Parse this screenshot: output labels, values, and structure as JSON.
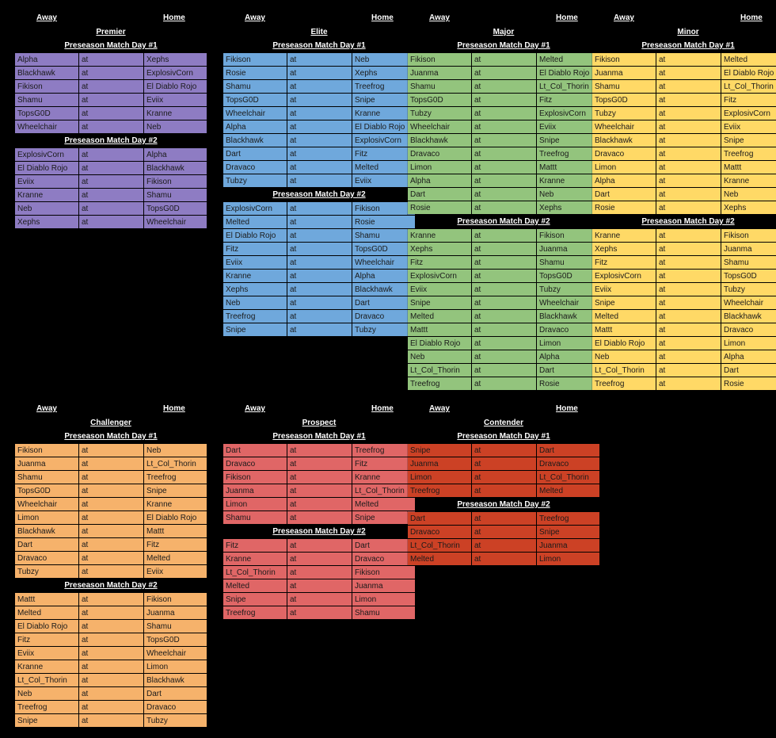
{
  "labels": {
    "away": "Away",
    "home": "Home",
    "day1": "Preseason Match Day #1",
    "day2": "Preseason Match Day #2",
    "at": "at"
  },
  "divisions": [
    {
      "key": "premier",
      "title": "Premier",
      "color": "#8e7cc3",
      "day1": [
        [
          "Alpha",
          "Xephs"
        ],
        [
          "Blackhawk",
          "ExplosivCorn"
        ],
        [
          "Fikison",
          "El Diablo Rojo"
        ],
        [
          "Shamu",
          "Eviix"
        ],
        [
          "TopsG0D",
          "Kranne"
        ],
        [
          "Wheelchair",
          "Neb"
        ]
      ],
      "day2": [
        [
          "ExplosivCorn",
          "Alpha"
        ],
        [
          "El Diablo Rojo",
          "Blackhawk"
        ],
        [
          "Eviix",
          "Fikison"
        ],
        [
          "Kranne",
          "Shamu"
        ],
        [
          "Neb",
          "TopsG0D"
        ],
        [
          "Xephs",
          "Wheelchair"
        ]
      ]
    },
    {
      "key": "elite",
      "title": "Elite",
      "color": "#6fa8dc",
      "day1": [
        [
          "Fikison",
          "Neb"
        ],
        [
          "Rosie",
          "Xephs"
        ],
        [
          "Shamu",
          "Treefrog"
        ],
        [
          "TopsG0D",
          "Snipe"
        ],
        [
          "Wheelchair",
          "Kranne"
        ],
        [
          "Alpha",
          "El Diablo Rojo"
        ],
        [
          "Blackhawk",
          "ExplosivCorn"
        ],
        [
          "Dart",
          "Fitz"
        ],
        [
          "Dravaco",
          "Melted"
        ],
        [
          "Tubzy",
          "Eviix"
        ]
      ],
      "day2": [
        [
          "ExplosivCorn",
          "Fikison"
        ],
        [
          "Melted",
          "Rosie"
        ],
        [
          "El Diablo Rojo",
          "Shamu"
        ],
        [
          "Fitz",
          "TopsG0D"
        ],
        [
          "Eviix",
          "Wheelchair"
        ],
        [
          "Kranne",
          "Alpha"
        ],
        [
          "Xephs",
          "Blackhawk"
        ],
        [
          "Neb",
          "Dart"
        ],
        [
          "Treefrog",
          "Dravaco"
        ],
        [
          "Snipe",
          "Tubzy"
        ]
      ]
    },
    {
      "key": "major",
      "title": "Major",
      "color": "#93c47d",
      "day1": [
        [
          "Fikison",
          "Melted"
        ],
        [
          "Juanma",
          "El Diablo Rojo"
        ],
        [
          "Shamu",
          "Lt_Col_Thorin"
        ],
        [
          "TopsG0D",
          "Fitz"
        ],
        [
          "Tubzy",
          "ExplosivCorn"
        ],
        [
          "Wheelchair",
          "Eviix"
        ],
        [
          "Blackhawk",
          "Snipe"
        ],
        [
          "Dravaco",
          "Treefrog"
        ],
        [
          "Limon",
          "Mattt"
        ],
        [
          "Alpha",
          "Kranne"
        ],
        [
          "Dart",
          "Neb"
        ],
        [
          "Rosie",
          "Xephs"
        ]
      ],
      "day2": [
        [
          "Kranne",
          "Fikison"
        ],
        [
          "Xephs",
          "Juanma"
        ],
        [
          "Fitz",
          "Shamu"
        ],
        [
          "ExplosivCorn",
          "TopsG0D"
        ],
        [
          "Eviix",
          "Tubzy"
        ],
        [
          "Snipe",
          "Wheelchair"
        ],
        [
          "Melted",
          "Blackhawk"
        ],
        [
          "Mattt",
          "Dravaco"
        ],
        [
          "El Diablo Rojo",
          "Limon"
        ],
        [
          "Neb",
          "Alpha"
        ],
        [
          "Lt_Col_Thorin",
          "Dart"
        ],
        [
          "Treefrog",
          "Rosie"
        ]
      ]
    },
    {
      "key": "minor",
      "title": "Minor",
      "color": "#ffd966",
      "day1": [
        [
          "Fikison",
          "Melted"
        ],
        [
          "Juanma",
          "El Diablo Rojo"
        ],
        [
          "Shamu",
          "Lt_Col_Thorin"
        ],
        [
          "TopsG0D",
          "Fitz"
        ],
        [
          "Tubzy",
          "ExplosivCorn"
        ],
        [
          "Wheelchair",
          "Eviix"
        ],
        [
          "Blackhawk",
          "Snipe"
        ],
        [
          "Dravaco",
          "Treefrog"
        ],
        [
          "Limon",
          "Mattt"
        ],
        [
          "Alpha",
          "Kranne"
        ],
        [
          "Dart",
          "Neb"
        ],
        [
          "Rosie",
          "Xephs"
        ]
      ],
      "day2": [
        [
          "Kranne",
          "Fikison"
        ],
        [
          "Xephs",
          "Juanma"
        ],
        [
          "Fitz",
          "Shamu"
        ],
        [
          "ExplosivCorn",
          "TopsG0D"
        ],
        [
          "Eviix",
          "Tubzy"
        ],
        [
          "Snipe",
          "Wheelchair"
        ],
        [
          "Melted",
          "Blackhawk"
        ],
        [
          "Mattt",
          "Dravaco"
        ],
        [
          "El Diablo Rojo",
          "Limon"
        ],
        [
          "Neb",
          "Alpha"
        ],
        [
          "Lt_Col_Thorin",
          "Dart"
        ],
        [
          "Treefrog",
          "Rosie"
        ]
      ]
    },
    {
      "key": "challenger",
      "title": "Challenger",
      "color": "#f6b26b",
      "day1": [
        [
          "Fikison",
          "Neb"
        ],
        [
          "Juanma",
          "Lt_Col_Thorin"
        ],
        [
          "Shamu",
          "Treefrog"
        ],
        [
          "TopsG0D",
          "Snipe"
        ],
        [
          "Wheelchair",
          "Kranne"
        ],
        [
          "Limon",
          "El Diablo Rojo"
        ],
        [
          "Blackhawk",
          "Mattt"
        ],
        [
          "Dart",
          "Fitz"
        ],
        [
          "Dravaco",
          "Melted"
        ],
        [
          "Tubzy",
          "Eviix"
        ]
      ],
      "day2": [
        [
          "Mattt",
          "Fikison"
        ],
        [
          "Melted",
          "Juanma"
        ],
        [
          "El Diablo Rojo",
          "Shamu"
        ],
        [
          "Fitz",
          "TopsG0D"
        ],
        [
          "Eviix",
          "Wheelchair"
        ],
        [
          "Kranne",
          "Limon"
        ],
        [
          "Lt_Col_Thorin",
          "Blackhawk"
        ],
        [
          "Neb",
          "Dart"
        ],
        [
          "Treefrog",
          "Dravaco"
        ],
        [
          "Snipe",
          "Tubzy"
        ]
      ]
    },
    {
      "key": "prospect",
      "title": "Prospect",
      "color": "#e06666",
      "day1": [
        [
          "Dart",
          "Treefrog"
        ],
        [
          "Dravaco",
          "Fitz"
        ],
        [
          "Fikison",
          "Kranne"
        ],
        [
          "Juanma",
          "Lt_Col_Thorin"
        ],
        [
          "Limon",
          "Melted"
        ],
        [
          "Shamu",
          "Snipe"
        ]
      ],
      "day2": [
        [
          "Fitz",
          "Dart"
        ],
        [
          "Kranne",
          "Dravaco"
        ],
        [
          "Lt_Col_Thorin",
          "Fikison"
        ],
        [
          "Melted",
          "Juanma"
        ],
        [
          "Snipe",
          "Limon"
        ],
        [
          "Treefrog",
          "Shamu"
        ]
      ]
    },
    {
      "key": "contender",
      "title": "Contender",
      "color": "#cc4125",
      "day1": [
        [
          "Snipe",
          "Dart"
        ],
        [
          "Juanma",
          "Dravaco"
        ],
        [
          "Limon",
          "Lt_Col_Thorin"
        ],
        [
          "Treefrog",
          "Melted"
        ]
      ],
      "day2": [
        [
          "Dart",
          "Treefrog"
        ],
        [
          "Dravaco",
          "Snipe"
        ],
        [
          "Lt_Col_Thorin",
          "Juanma"
        ],
        [
          "Melted",
          "Limon"
        ]
      ]
    }
  ]
}
